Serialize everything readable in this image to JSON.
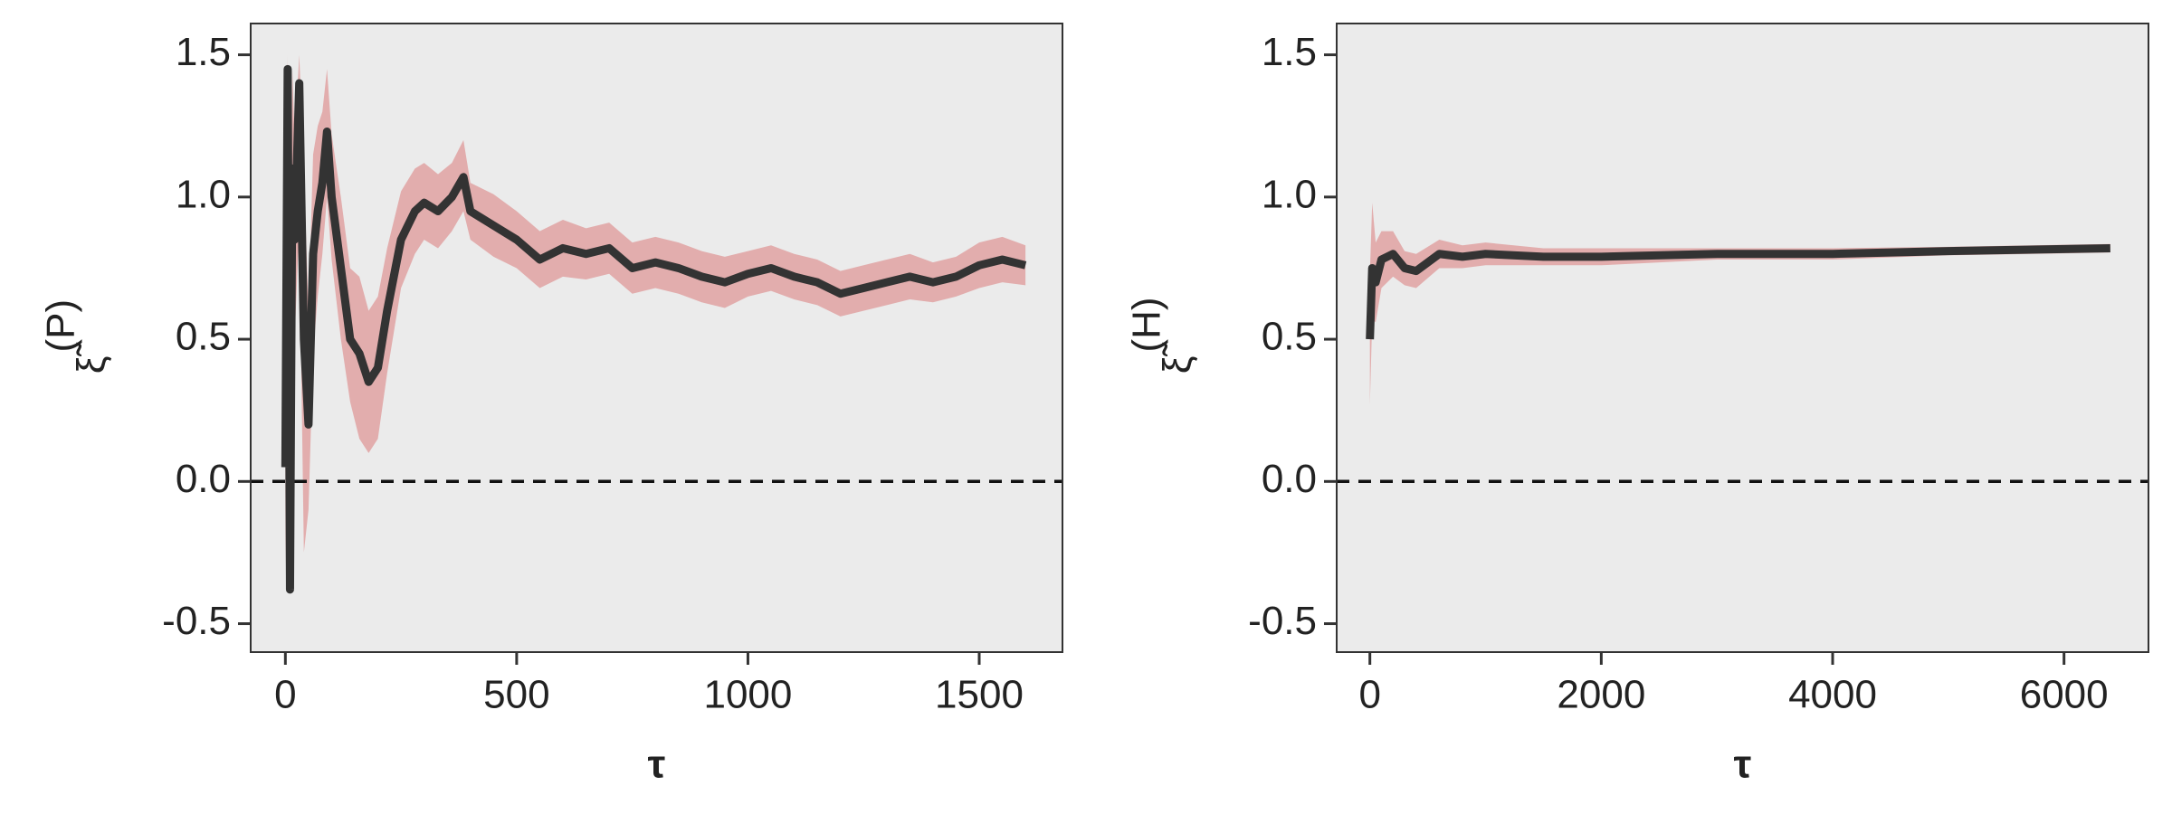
{
  "chart_data": [
    {
      "type": "line",
      "xlabel": "τ",
      "ylabel": "ξ̃",
      "ylabel_sup": "(P)",
      "x": [
        0,
        5,
        10,
        15,
        20,
        30,
        40,
        50,
        60,
        70,
        80,
        90,
        100,
        120,
        140,
        160,
        180,
        200,
        220,
        250,
        280,
        300,
        330,
        360,
        385,
        400,
        450,
        500,
        550,
        600,
        650,
        700,
        750,
        800,
        850,
        900,
        950,
        1000,
        1050,
        1100,
        1150,
        1200,
        1250,
        1300,
        1350,
        1400,
        1450,
        1500,
        1550,
        1600
      ],
      "values": [
        0.05,
        1.45,
        -0.38,
        1.1,
        0.85,
        1.4,
        0.5,
        0.2,
        0.8,
        0.95,
        1.05,
        1.23,
        1.0,
        0.75,
        0.5,
        0.45,
        0.35,
        0.4,
        0.6,
        0.85,
        0.95,
        0.98,
        0.95,
        1.0,
        1.07,
        0.95,
        0.9,
        0.85,
        0.78,
        0.82,
        0.8,
        0.82,
        0.75,
        0.77,
        0.75,
        0.72,
        0.7,
        0.73,
        0.75,
        0.72,
        0.7,
        0.66,
        0.68,
        0.7,
        0.72,
        0.7,
        0.72,
        0.76,
        0.78,
        0.76
      ],
      "band_lower": [
        -0.3,
        1.0,
        -0.2,
        0.7,
        0.5,
        0.9,
        -0.25,
        -0.1,
        0.45,
        0.65,
        0.8,
        1.0,
        0.78,
        0.5,
        0.28,
        0.15,
        0.1,
        0.15,
        0.38,
        0.68,
        0.8,
        0.85,
        0.82,
        0.88,
        0.95,
        0.85,
        0.79,
        0.75,
        0.68,
        0.72,
        0.71,
        0.73,
        0.66,
        0.68,
        0.66,
        0.63,
        0.61,
        0.65,
        0.67,
        0.64,
        0.62,
        0.58,
        0.6,
        0.62,
        0.64,
        0.63,
        0.65,
        0.68,
        0.7,
        0.69
      ],
      "band_upper": [
        0.4,
        1.5,
        0.2,
        1.45,
        1.2,
        1.5,
        1.1,
        0.6,
        1.15,
        1.25,
        1.3,
        1.45,
        1.22,
        1.0,
        0.75,
        0.72,
        0.6,
        0.65,
        0.82,
        1.02,
        1.1,
        1.12,
        1.08,
        1.12,
        1.2,
        1.05,
        1.01,
        0.95,
        0.88,
        0.92,
        0.89,
        0.91,
        0.84,
        0.86,
        0.84,
        0.81,
        0.79,
        0.81,
        0.83,
        0.8,
        0.78,
        0.74,
        0.76,
        0.78,
        0.8,
        0.77,
        0.79,
        0.84,
        0.86,
        0.83
      ],
      "line_color": "#333333",
      "band_color": "#e2adad",
      "background": "#ebebeb",
      "hline": 0,
      "xlim": [
        -75,
        1680
      ],
      "ylim": [
        -0.6,
        1.61
      ],
      "xticks": [
        0,
        500,
        1000,
        1500
      ],
      "yticks": [
        -0.5,
        {
          "value": 0,
          "label": "0.0"
        },
        0.5,
        {
          "value": 1,
          "label": "1.0"
        },
        1.5
      ]
    },
    {
      "type": "line",
      "xlabel": "τ",
      "ylabel": "ξ̃",
      "ylabel_sup": "(H)",
      "x": [
        0,
        20,
        50,
        100,
        200,
        300,
        400,
        600,
        800,
        1000,
        1500,
        2000,
        3000,
        4000,
        5000,
        6400
      ],
      "values": [
        0.5,
        0.75,
        0.7,
        0.78,
        0.8,
        0.75,
        0.74,
        0.8,
        0.79,
        0.8,
        0.79,
        0.79,
        0.8,
        0.8,
        0.81,
        0.82
      ],
      "band_lower": [
        0.27,
        0.57,
        0.56,
        0.68,
        0.72,
        0.69,
        0.68,
        0.75,
        0.75,
        0.76,
        0.76,
        0.76,
        0.78,
        0.78,
        0.795,
        0.805
      ],
      "band_upper": [
        0.73,
        0.98,
        0.84,
        0.88,
        0.88,
        0.81,
        0.8,
        0.85,
        0.83,
        0.84,
        0.82,
        0.82,
        0.82,
        0.82,
        0.825,
        0.835
      ],
      "line_color": "#333333",
      "band_color": "#e2adad",
      "background": "#ebebeb",
      "hline": 0,
      "xlim": [
        -287,
        6730
      ],
      "ylim": [
        -0.6,
        1.61
      ],
      "xticks": [
        0,
        2000,
        4000,
        6000
      ],
      "yticks": [
        -0.5,
        {
          "value": 0,
          "label": "0.0"
        },
        0.5,
        {
          "value": 1,
          "label": "1.0"
        },
        1.5
      ]
    }
  ]
}
